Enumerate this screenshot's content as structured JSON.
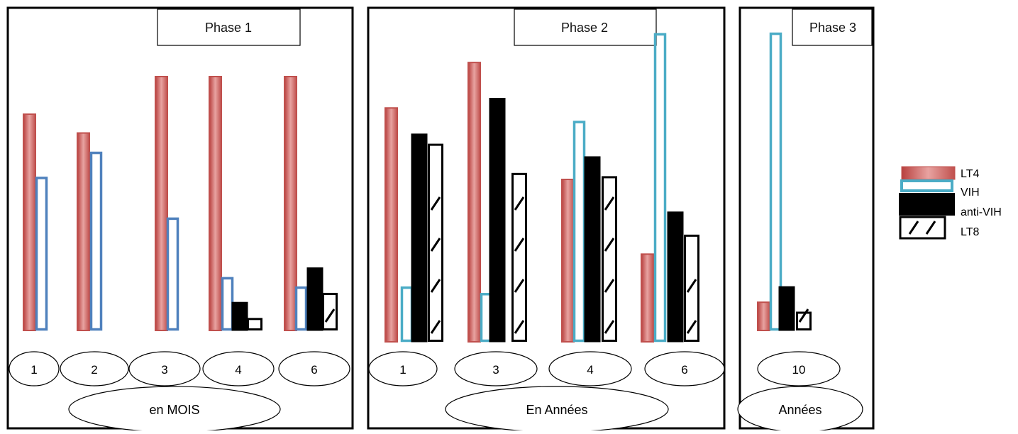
{
  "legend": {
    "items": [
      {
        "label": "LT4",
        "style": "lt4"
      },
      {
        "label": "VIH",
        "style": "vih"
      },
      {
        "label": "anti-VIH",
        "style": "anti"
      },
      {
        "label": "LT8",
        "style": "lt8"
      }
    ]
  },
  "colors": {
    "lt4": "#c0504d",
    "lt4_light": "#e39a98",
    "vih_phase1": "#4f81bd",
    "vih_phase2": "#4bacc6",
    "anti": "#000000",
    "lt8": "#ffffff"
  },
  "chart_data": [
    {
      "type": "bar",
      "title": "Phase 1",
      "xlabel": "en MOIS",
      "categories": [
        "1",
        "2",
        "3",
        "4",
        "6"
      ],
      "series": [
        {
          "name": "LT4",
          "values": [
            69,
            63,
            81,
            81,
            81
          ]
        },
        {
          "name": "VIH",
          "values": [
            49,
            57,
            36,
            17,
            14
          ]
        },
        {
          "name": "anti-VIH",
          "values": [
            null,
            null,
            null,
            9,
            20
          ]
        },
        {
          "name": "LT8",
          "values": [
            null,
            null,
            null,
            4,
            12
          ]
        }
      ],
      "ylim": [
        0,
        100
      ],
      "grid": false
    },
    {
      "type": "bar",
      "title": "Phase 2",
      "xlabel": "En Années",
      "categories": [
        "1",
        "3",
        "4",
        "6"
      ],
      "series": [
        {
          "name": "LT4",
          "values": [
            72,
            86,
            50,
            27
          ]
        },
        {
          "name": "VIH",
          "values": [
            17,
            15,
            68,
            95
          ]
        },
        {
          "name": "anti-VIH",
          "values": [
            64,
            75,
            57,
            40
          ]
        },
        {
          "name": "LT8",
          "values": [
            61,
            52,
            51,
            33
          ]
        }
      ],
      "ylim": [
        0,
        100
      ],
      "grid": false
    },
    {
      "type": "bar",
      "title": "Phase 3",
      "xlabel": "Années",
      "categories": [
        "10"
      ],
      "series": [
        {
          "name": "LT4",
          "values": [
            9
          ]
        },
        {
          "name": "VIH",
          "values": [
            95
          ]
        },
        {
          "name": "anti-VIH",
          "values": [
            14
          ]
        },
        {
          "name": "LT8",
          "values": [
            6
          ]
        }
      ],
      "ylim": [
        0,
        100
      ],
      "grid": false
    }
  ]
}
